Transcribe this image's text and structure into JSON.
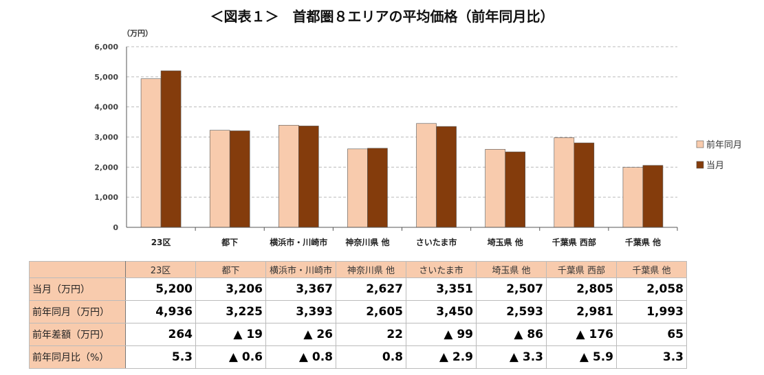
{
  "title": "＜図表１＞　首都圏８エリアの平均価格（前年同月比）",
  "chart_data": {
    "type": "bar",
    "title": "＜図表１＞　首都圏８エリアの平均価格（前年同月比）",
    "ylabel": "（万円）",
    "ylim": [
      0,
      6000
    ],
    "yticks": [
      "0",
      "1,000",
      "2,000",
      "3,000",
      "4,000",
      "5,000",
      "6,000"
    ],
    "grid": true,
    "legend_position": "right",
    "categories": [
      "23区",
      "都下",
      "横浜市・川崎市",
      "神奈川県 他",
      "さいたま市",
      "埼玉県 他",
      "千葉県 西部",
      "千葉県 他"
    ],
    "series": [
      {
        "name": "前年同月",
        "color": "#f8cbad",
        "values": [
          4936,
          3225,
          3393,
          2605,
          3450,
          2593,
          2981,
          1993
        ]
      },
      {
        "name": "当月",
        "color": "#843c0c",
        "values": [
          5200,
          3206,
          3367,
          2627,
          3351,
          2507,
          2805,
          2058
        ]
      }
    ]
  },
  "table": {
    "columns": [
      "23区",
      "都下",
      "横浜市・川崎市",
      "神奈川県 他",
      "さいたま市",
      "埼玉県 他",
      "千葉県 西部",
      "千葉県 他"
    ],
    "rows": [
      {
        "label": "当月（万円）",
        "values": [
          "5,200",
          "3,206",
          "3,367",
          "2,627",
          "3,351",
          "2,507",
          "2,805",
          "2,058"
        ]
      },
      {
        "label": "前年同月（万円）",
        "values": [
          "4,936",
          "3,225",
          "3,393",
          "2,605",
          "3,450",
          "2,593",
          "2,981",
          "1,993"
        ]
      },
      {
        "label": "前年差額（万円）",
        "values": [
          "264",
          "▲ 19",
          "▲ 26",
          "22",
          "▲ 99",
          "▲ 86",
          "▲ 176",
          "65"
        ]
      },
      {
        "label": "前年同月比（%）",
        "values": [
          "5.3",
          "▲ 0.6",
          "▲ 0.8",
          "0.8",
          "▲ 2.9",
          "▲ 3.3",
          "▲ 5.9",
          "3.3"
        ]
      }
    ]
  }
}
